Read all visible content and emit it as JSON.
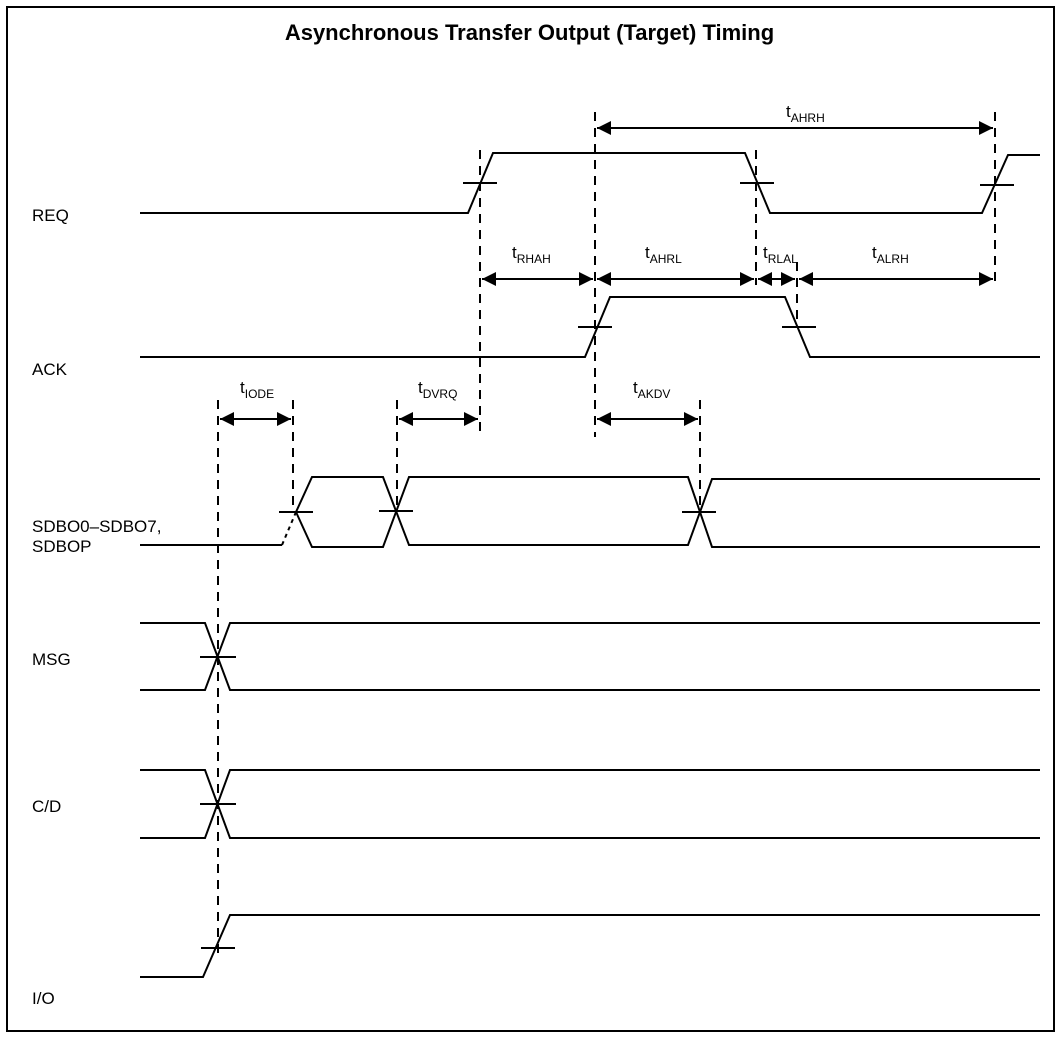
{
  "title": "Asynchronous Transfer Output (Target) Timing",
  "signals": {
    "req": "REQ",
    "ack": "ACK",
    "sdbo_line1": "SDBO0–SDBO7,",
    "sdbo_line2": "SDBOP",
    "msg": "MSG",
    "cd": "C/D",
    "io": "I/O"
  },
  "timings": {
    "ahrh": {
      "base": "t",
      "sub": "AHRH"
    },
    "rhah": {
      "base": "t",
      "sub": "RHAH"
    },
    "ahrl": {
      "base": "t",
      "sub": "AHRL"
    },
    "rlal": {
      "base": "t",
      "sub": "RLAL"
    },
    "alrh": {
      "base": "t",
      "sub": "ALRH"
    },
    "iode": {
      "base": "t",
      "sub": "IODE"
    },
    "dvrq": {
      "base": "t",
      "sub": "DVRQ"
    },
    "akdv": {
      "base": "t",
      "sub": "AKDV"
    }
  }
}
